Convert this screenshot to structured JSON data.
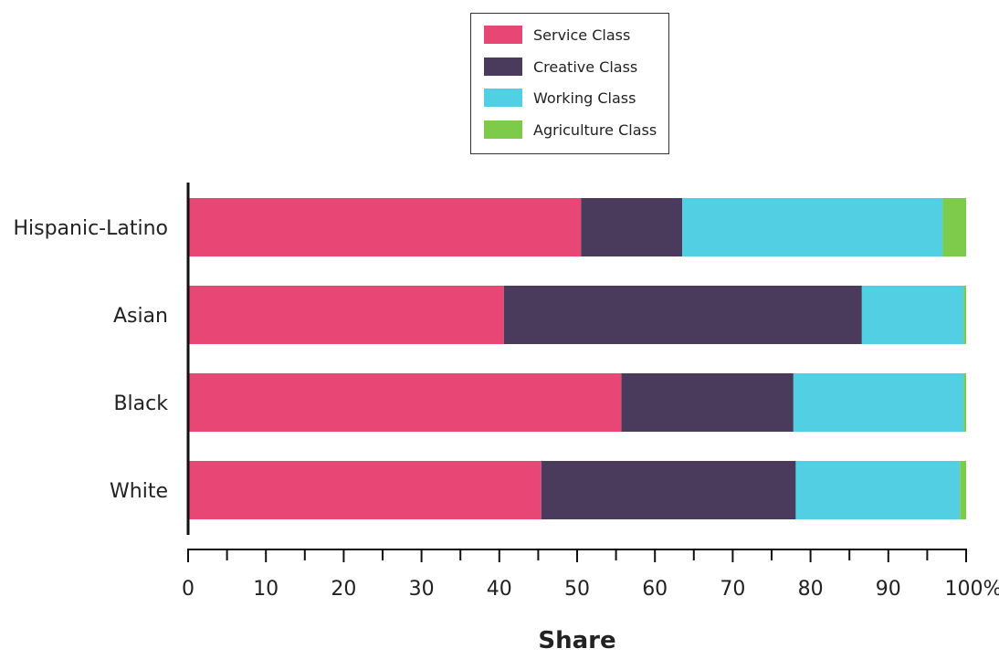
{
  "chart_data": {
    "type": "bar",
    "orientation": "horizontal",
    "stacked": true,
    "categories": [
      "Hispanic-Latino",
      "Asian",
      "Black",
      "White"
    ],
    "series": [
      {
        "name": "Service Class",
        "color": "#e84674",
        "values": [
          50.5,
          40.6,
          55.7,
          45.4
        ]
      },
      {
        "name": "Creative Class",
        "color": "#4a3a5c",
        "values": [
          13.0,
          46.0,
          22.1,
          32.7
        ]
      },
      {
        "name": "Working Class",
        "color": "#52cfe3",
        "values": [
          33.5,
          13.1,
          21.9,
          21.1
        ]
      },
      {
        "name": "Agriculture Class",
        "color": "#7ecb4b",
        "values": [
          3.0,
          0.3,
          0.3,
          0.8
        ]
      }
    ],
    "xlabel": "Share",
    "xlim": [
      0,
      100
    ],
    "xticks": [
      "0",
      "10",
      "20",
      "30",
      "40",
      "50",
      "60",
      "70",
      "80",
      "90",
      "100%"
    ],
    "legend_position": "top-center",
    "grid": false
  }
}
